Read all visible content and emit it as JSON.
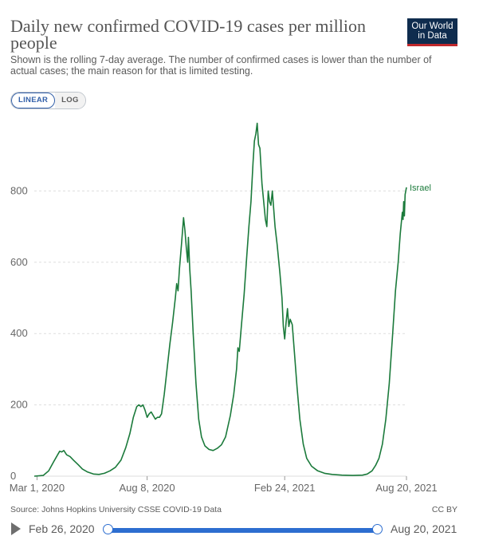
{
  "header": {
    "title": "Daily new confirmed COVID-19 cases per million people",
    "subtitle": "Shown is the rolling 7-day average. The number of confirmed cases is lower than the number of actual cases; the main reason for that is limited testing.",
    "logo_line1": "Our World",
    "logo_line2": "in Data"
  },
  "controls": {
    "linear_label": "LINEAR",
    "log_label": "LOG"
  },
  "colors": {
    "series": "#1b7a3b",
    "grid": "#dddddd",
    "accent": "#2d6ed0",
    "logo_bg": "#0f2c4e",
    "logo_stripe": "#c0282c"
  },
  "chart_data": {
    "type": "line",
    "x_axis": "date",
    "ylim": [
      0,
      1000
    ],
    "y_ticks": [
      0,
      200,
      400,
      600,
      800
    ],
    "y_tick_labels": [
      "0",
      "200",
      "400",
      "600",
      "800"
    ],
    "x_ticks": [
      "2020-03-01",
      "2020-08-08",
      "2021-02-24",
      "2021-08-20"
    ],
    "x_tick_labels": [
      "Mar 1, 2020",
      "Aug 8, 2020",
      "Feb 24, 2021",
      "Aug 20, 2021"
    ],
    "x_range": [
      "2020-02-26",
      "2021-08-20"
    ],
    "grid": "horizontal dashed",
    "series": [
      {
        "name": "Israel",
        "points": [
          [
            "2020-02-26",
            0
          ],
          [
            "2020-03-10",
            2
          ],
          [
            "2020-03-18",
            15
          ],
          [
            "2020-03-25",
            40
          ],
          [
            "2020-03-31",
            60
          ],
          [
            "2020-04-03",
            70
          ],
          [
            "2020-04-06",
            68
          ],
          [
            "2020-04-09",
            72
          ],
          [
            "2020-04-13",
            60
          ],
          [
            "2020-04-18",
            55
          ],
          [
            "2020-04-23",
            45
          ],
          [
            "2020-04-30",
            32
          ],
          [
            "2020-05-06",
            20
          ],
          [
            "2020-05-13",
            12
          ],
          [
            "2020-05-22",
            6
          ],
          [
            "2020-05-30",
            5
          ],
          [
            "2020-06-07",
            8
          ],
          [
            "2020-06-15",
            15
          ],
          [
            "2020-06-23",
            25
          ],
          [
            "2020-07-01",
            45
          ],
          [
            "2020-07-08",
            80
          ],
          [
            "2020-07-14",
            120
          ],
          [
            "2020-07-19",
            165
          ],
          [
            "2020-07-24",
            195
          ],
          [
            "2020-07-27",
            200
          ],
          [
            "2020-07-30",
            195
          ],
          [
            "2020-08-02",
            200
          ],
          [
            "2020-08-05",
            185
          ],
          [
            "2020-08-08",
            165
          ],
          [
            "2020-08-11",
            175
          ],
          [
            "2020-08-14",
            180
          ],
          [
            "2020-08-17",
            170
          ],
          [
            "2020-08-20",
            160
          ],
          [
            "2020-08-23",
            165
          ],
          [
            "2020-08-26",
            165
          ],
          [
            "2020-08-29",
            175
          ],
          [
            "2020-09-02",
            230
          ],
          [
            "2020-09-06",
            300
          ],
          [
            "2020-09-10",
            370
          ],
          [
            "2020-09-14",
            430
          ],
          [
            "2020-09-18",
            500
          ],
          [
            "2020-09-20",
            540
          ],
          [
            "2020-09-22",
            520
          ],
          [
            "2020-09-24",
            580
          ],
          [
            "2020-09-27",
            650
          ],
          [
            "2020-09-30",
            725
          ],
          [
            "2020-10-02",
            690
          ],
          [
            "2020-10-04",
            640
          ],
          [
            "2020-10-06",
            600
          ],
          [
            "2020-10-07",
            670
          ],
          [
            "2020-10-09",
            580
          ],
          [
            "2020-10-11",
            520
          ],
          [
            "2020-10-14",
            400
          ],
          [
            "2020-10-18",
            260
          ],
          [
            "2020-10-22",
            160
          ],
          [
            "2020-10-26",
            110
          ],
          [
            "2020-10-31",
            85
          ],
          [
            "2020-11-06",
            75
          ],
          [
            "2020-11-12",
            72
          ],
          [
            "2020-11-18",
            78
          ],
          [
            "2020-11-24",
            88
          ],
          [
            "2020-11-30",
            110
          ],
          [
            "2020-12-07",
            170
          ],
          [
            "2020-12-12",
            230
          ],
          [
            "2020-12-16",
            300
          ],
          [
            "2020-12-18",
            360
          ],
          [
            "2020-12-20",
            350
          ],
          [
            "2020-12-23",
            420
          ],
          [
            "2020-12-27",
            510
          ],
          [
            "2020-12-31",
            620
          ],
          [
            "2021-01-03",
            700
          ],
          [
            "2021-01-06",
            770
          ],
          [
            "2021-01-09",
            880
          ],
          [
            "2021-01-11",
            940
          ],
          [
            "2021-01-13",
            960
          ],
          [
            "2021-01-15",
            990
          ],
          [
            "2021-01-17",
            930
          ],
          [
            "2021-01-19",
            920
          ],
          [
            "2021-01-22",
            820
          ],
          [
            "2021-01-25",
            760
          ],
          [
            "2021-01-27",
            720
          ],
          [
            "2021-01-29",
            700
          ],
          [
            "2021-01-31",
            800
          ],
          [
            "2021-02-02",
            770
          ],
          [
            "2021-02-04",
            760
          ],
          [
            "2021-02-06",
            800
          ],
          [
            "2021-02-08",
            750
          ],
          [
            "2021-02-10",
            700
          ],
          [
            "2021-02-13",
            650
          ],
          [
            "2021-02-17",
            570
          ],
          [
            "2021-02-20",
            500
          ],
          [
            "2021-02-22",
            420
          ],
          [
            "2021-02-24",
            385
          ],
          [
            "2021-02-26",
            430
          ],
          [
            "2021-02-28",
            470
          ],
          [
            "2021-03-02",
            420
          ],
          [
            "2021-03-04",
            440
          ],
          [
            "2021-03-07",
            425
          ],
          [
            "2021-03-10",
            350
          ],
          [
            "2021-03-14",
            250
          ],
          [
            "2021-03-18",
            160
          ],
          [
            "2021-03-23",
            90
          ],
          [
            "2021-03-28",
            50
          ],
          [
            "2021-04-04",
            28
          ],
          [
            "2021-04-13",
            15
          ],
          [
            "2021-04-23",
            8
          ],
          [
            "2021-05-04",
            5
          ],
          [
            "2021-05-18",
            3
          ],
          [
            "2021-06-03",
            2
          ],
          [
            "2021-06-17",
            3
          ],
          [
            "2021-06-24",
            6
          ],
          [
            "2021-07-01",
            15
          ],
          [
            "2021-07-06",
            30
          ],
          [
            "2021-07-11",
            50
          ],
          [
            "2021-07-16",
            90
          ],
          [
            "2021-07-21",
            160
          ],
          [
            "2021-07-26",
            260
          ],
          [
            "2021-07-31",
            400
          ],
          [
            "2021-08-04",
            520
          ],
          [
            "2021-08-08",
            600
          ],
          [
            "2021-08-11",
            680
          ],
          [
            "2021-08-14",
            740
          ],
          [
            "2021-08-15",
            720
          ],
          [
            "2021-08-16",
            770
          ],
          [
            "2021-08-17",
            730
          ],
          [
            "2021-08-18",
            790
          ],
          [
            "2021-08-20",
            810
          ]
        ]
      }
    ]
  },
  "footer": {
    "source": "Source: Johns Hopkins University CSSE COVID-19 Data",
    "license": "CC BY"
  },
  "timeline": {
    "start_label": "Feb 26, 2020",
    "end_label": "Aug 20, 2021"
  }
}
